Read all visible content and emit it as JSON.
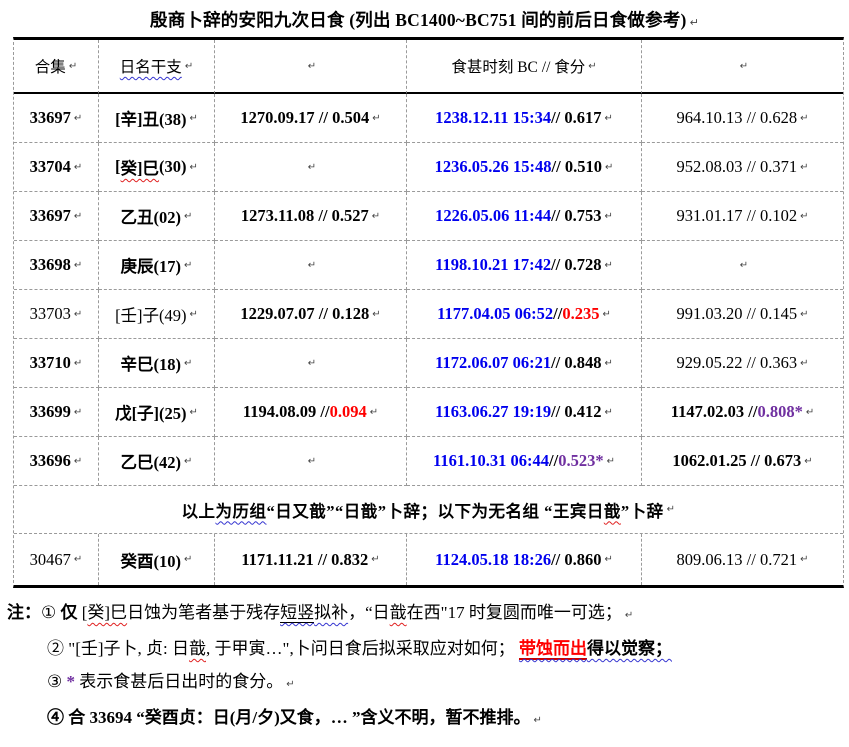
{
  "pmark": "↵",
  "title": {
    "text": "殷商卜辞的安阳九次日食 (列出  BC1400~BC751  间的前后日食做参考)"
  },
  "colors": {
    "accent_blue": "#0000EE",
    "accent_red": "#FF0000",
    "accent_purple": "#7030A0",
    "wavy_blue": "#3535D0",
    "wavy_red": "#E02020",
    "gridline": "#9A9A9A"
  },
  "table": {
    "header": {
      "cells": [
        {
          "segs": [
            {
              "t": "合集",
              "c": ""
            }
          ]
        },
        {
          "segs": [
            {
              "t": "日名干支",
              "c": "bw"
            }
          ]
        },
        {
          "segs": []
        },
        {
          "segs": [
            {
              "t": "食甚时刻 BC //  食分",
              "c": ""
            }
          ]
        },
        {
          "segs": []
        }
      ]
    },
    "rows": [
      {
        "cells": [
          {
            "segs": [
              {
                "t": "33697",
                "c": "b"
              }
            ]
          },
          {
            "segs": [
              {
                "t": "[辛]丑(38)",
                "c": "b"
              }
            ]
          },
          {
            "segs": [
              {
                "t": "1270.09.17 // 0.504",
                "c": "b"
              }
            ]
          },
          {
            "segs": [
              {
                "t": "1238.12.11 15:34",
                "c": "blue"
              },
              {
                "t": "// 0.617",
                "c": "b"
              }
            ]
          },
          {
            "segs": [
              {
                "t": "964.10.13 // 0.628",
                "c": ""
              }
            ]
          }
        ]
      },
      {
        "cells": [
          {
            "segs": [
              {
                "t": "33704",
                "c": "b"
              }
            ]
          },
          {
            "segs": [
              {
                "t": "[",
                "c": "b"
              },
              {
                "t": "癸]巳",
                "c": "b rw"
              },
              {
                "t": "(30)",
                "c": "b"
              }
            ]
          },
          {
            "segs": []
          },
          {
            "segs": [
              {
                "t": "1236.05.26 15:48",
                "c": "blue"
              },
              {
                "t": "// 0.510",
                "c": "b"
              }
            ]
          },
          {
            "segs": [
              {
                "t": "952.08.03 // 0.371",
                "c": ""
              }
            ]
          }
        ]
      },
      {
        "cells": [
          {
            "segs": [
              {
                "t": "33697",
                "c": "b"
              }
            ]
          },
          {
            "segs": [
              {
                "t": "乙丑(02)",
                "c": "b"
              }
            ]
          },
          {
            "segs": [
              {
                "t": "1273.11.08 // 0.527",
                "c": "b"
              }
            ]
          },
          {
            "segs": [
              {
                "t": "1226.05.06 11:44",
                "c": "blue"
              },
              {
                "t": "// 0.753",
                "c": "b"
              }
            ]
          },
          {
            "segs": [
              {
                "t": "931.01.17 // 0.102",
                "c": ""
              }
            ]
          }
        ]
      },
      {
        "cells": [
          {
            "segs": [
              {
                "t": "33698",
                "c": "b"
              }
            ]
          },
          {
            "segs": [
              {
                "t": "庚辰(17)",
                "c": "b"
              }
            ]
          },
          {
            "segs": []
          },
          {
            "segs": [
              {
                "t": "1198.10.21 17:42",
                "c": "blue"
              },
              {
                "t": "// 0.728",
                "c": "b"
              }
            ]
          },
          {
            "segs": []
          }
        ]
      },
      {
        "cells": [
          {
            "segs": [
              {
                "t": "33703",
                "c": ""
              }
            ]
          },
          {
            "segs": [
              {
                "t": "[壬]子(49)",
                "c": ""
              }
            ]
          },
          {
            "segs": [
              {
                "t": "1229.07.07 // 0.128",
                "c": "b"
              }
            ]
          },
          {
            "segs": [
              {
                "t": "1177.04.05 06:52",
                "c": "blue"
              },
              {
                "t": "// ",
                "c": "b"
              },
              {
                "t": "0.235",
                "c": "red"
              }
            ]
          },
          {
            "segs": [
              {
                "t": "991.03.20 // 0.145",
                "c": ""
              }
            ]
          }
        ]
      },
      {
        "cells": [
          {
            "segs": [
              {
                "t": "33710",
                "c": "b"
              }
            ]
          },
          {
            "segs": [
              {
                "t": "辛巳(18)",
                "c": "b"
              }
            ]
          },
          {
            "segs": []
          },
          {
            "segs": [
              {
                "t": "1172.06.07 06:21",
                "c": "blue"
              },
              {
                "t": "// 0.848",
                "c": "b"
              }
            ]
          },
          {
            "segs": [
              {
                "t": "929.05.22 // 0.363",
                "c": ""
              }
            ]
          }
        ]
      },
      {
        "cells": [
          {
            "segs": [
              {
                "t": "33699",
                "c": "b"
              }
            ]
          },
          {
            "segs": [
              {
                "t": "戊[子](25)",
                "c": "b"
              }
            ]
          },
          {
            "segs": [
              {
                "t": "1194.08.09 // ",
                "c": "b"
              },
              {
                "t": "0.094",
                "c": "red"
              }
            ]
          },
          {
            "segs": [
              {
                "t": "1163.06.27 19:19",
                "c": "blue"
              },
              {
                "t": "// 0.412",
                "c": "b"
              }
            ]
          },
          {
            "segs": [
              {
                "t": "1147.02.03 // ",
                "c": "b"
              },
              {
                "t": "0.808*",
                "c": "purple"
              }
            ]
          }
        ]
      },
      {
        "cells": [
          {
            "segs": [
              {
                "t": "33696",
                "c": "b"
              }
            ]
          },
          {
            "segs": [
              {
                "t": "乙巳(42)",
                "c": "b"
              }
            ]
          },
          {
            "segs": []
          },
          {
            "segs": [
              {
                "t": "1161.10.31 06:44",
                "c": "blue"
              },
              {
                "t": "// ",
                "c": "b"
              },
              {
                "t": "0.523*",
                "c": "purple"
              }
            ]
          },
          {
            "segs": [
              {
                "t": "1062.01.25 // 0.673",
                "c": "b"
              }
            ]
          }
        ]
      },
      {
        "divider": true,
        "segs": [
          {
            "t": "以上",
            "c": ""
          },
          {
            "t": "为历组",
            "c": "bw"
          },
          {
            "t": "“日又戠”“日戠”卜辞；以下为无名组 “王宾日",
            "c": ""
          },
          {
            "t": "戠",
            "c": "rw"
          },
          {
            "t": "”卜辞",
            "c": ""
          }
        ]
      },
      {
        "last": true,
        "cells": [
          {
            "segs": [
              {
                "t": "30467",
                "c": ""
              }
            ]
          },
          {
            "segs": [
              {
                "t": "癸酉(10)",
                "c": "b"
              }
            ]
          },
          {
            "segs": [
              {
                "t": "1171.11.21 // 0.832",
                "c": "b"
              }
            ]
          },
          {
            "segs": [
              {
                "t": "1124.05.18 18:26",
                "c": "blue"
              },
              {
                "t": "// 0.860",
                "c": "b"
              }
            ]
          },
          {
            "segs": [
              {
                "t": "809.06.13 // 0.721",
                "c": ""
              }
            ]
          }
        ]
      }
    ]
  },
  "notes": [
    {
      "indent": false,
      "pmark": true,
      "segs": [
        {
          "t": "注：",
          "c": "nb"
        },
        {
          "t": "① ",
          "c": ""
        },
        {
          "t": "仅 ",
          "c": "nb"
        },
        {
          "t": "[",
          "c": ""
        },
        {
          "t": "癸]巳",
          "c": "rw"
        },
        {
          "t": "日蚀为笔者基于残存",
          "c": ""
        },
        {
          "t": "短竖",
          "c": "ulb bw"
        },
        {
          "t": "拟补",
          "c": "bw"
        },
        {
          "t": "，“日",
          "c": ""
        },
        {
          "t": "戠",
          "c": "rw"
        },
        {
          "t": "在西\"17 时复圆而唯一可选；",
          "c": ""
        }
      ]
    },
    {
      "indent": true,
      "pmark": false,
      "segs": [
        {
          "t": "② ",
          "c": ""
        },
        {
          "t": "\"[壬]子卜, 贞: 日",
          "c": ""
        },
        {
          "t": "戠",
          "c": "rw"
        },
        {
          "t": ", 于甲寅…\",卜问日食后拟采取应对如何；  ",
          "c": ""
        },
        {
          "t": "带蚀而出",
          "c": "redul"
        },
        {
          "t": "得以觉察；",
          "c": "nb bw"
        }
      ]
    },
    {
      "indent": true,
      "pmark": true,
      "segs": [
        {
          "t": "③ ",
          "c": ""
        },
        {
          "t": "* ",
          "c": "purple"
        },
        {
          "t": "表示食甚后日出时的食分。",
          "c": ""
        }
      ]
    },
    {
      "indent": true,
      "pmark": true,
      "segs": [
        {
          "t": "④ 合 33694 “癸酉贞：日(月/夕)又食，… ”含义不明，暂不推排。",
          "c": "nb"
        }
      ]
    }
  ]
}
